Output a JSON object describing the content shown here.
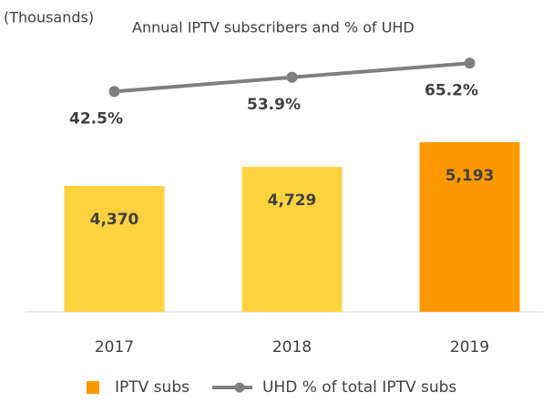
{
  "chart_data": {
    "type": "bar",
    "title": "Annual IPTV subscribers and % of UHD",
    "unit_label": "(Thousands)",
    "categories": [
      "2017",
      "2018",
      "2019"
    ],
    "ylim": [
      2000,
      6840
    ],
    "y2lim": [
      -134,
      72
    ],
    "series": [
      {
        "name": "IPTV subs",
        "type": "bar",
        "color": "#ff9900",
        "colors": [
          "#ffd23f",
          "#ffd23f",
          "#ff9900"
        ],
        "values": [
          4370,
          4729,
          5193
        ],
        "value_labels": [
          "4,370",
          "4,729",
          "5,193"
        ]
      },
      {
        "name": "UHD % of total IPTV subs",
        "type": "line",
        "axis": "y2",
        "color": "#7f7f7f",
        "values": [
          42.5,
          53.9,
          65.2
        ],
        "value_labels": [
          "42.5%",
          "53.9%",
          "65.2%"
        ]
      }
    ]
  }
}
